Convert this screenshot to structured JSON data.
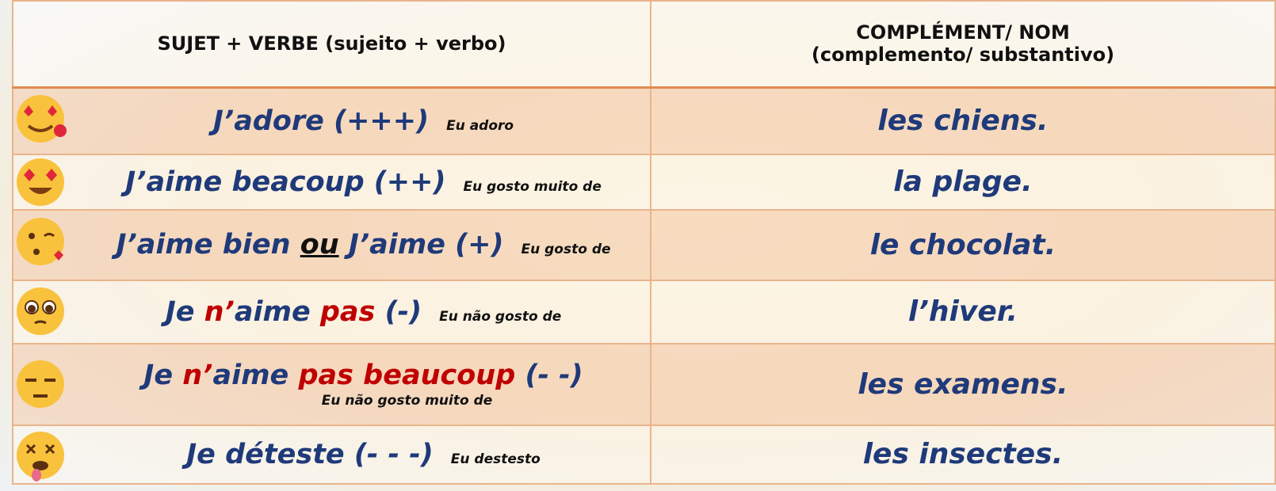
{
  "header": {
    "col1": "SUJET + VERBE (sujeito + verbo)",
    "col2": [
      "COMPLÉMENT/ NOM",
      "(complemento/ substantivo)"
    ]
  },
  "rows": [
    {
      "sujet": [
        {
          "text": "J’adore (+++)",
          "color": "#1f3a7a"
        }
      ],
      "note": "Eu adoro",
      "complement": "les chiens."
    },
    {
      "sujet": [
        {
          "text": "J’aime beacoup (++)",
          "color": "#1f3a7a"
        }
      ],
      "note": "Eu gosto muito de",
      "complement": "la plage."
    },
    {
      "sujet": [
        {
          "text": "J’aime bien ",
          "color": "#1f3a7a"
        },
        {
          "text": "ou",
          "color": "#111111",
          "underline": true
        },
        {
          "text": " J’aime (+)",
          "color": "#1f3a7a"
        }
      ],
      "note": "Eu gosto de",
      "complement": "le chocolat."
    },
    {
      "sujet": [
        {
          "text": "Je ",
          "color": "#1f3a7a"
        },
        {
          "text": "n’",
          "color": "#c00000"
        },
        {
          "text": "aime ",
          "color": "#1f3a7a"
        },
        {
          "text": "pas",
          "color": "#c00000"
        },
        {
          "text": " (-)",
          "color": "#1f3a7a"
        }
      ],
      "note": "Eu não gosto de",
      "complement": "l’hiver."
    },
    {
      "sujet": [
        {
          "text": "Je ",
          "color": "#1f3a7a"
        },
        {
          "text": "n’",
          "color": "#c00000"
        },
        {
          "text": "aime ",
          "color": "#1f3a7a"
        },
        {
          "text": "pas beaucoup",
          "color": "#c00000"
        },
        {
          "text": " (- -)",
          "color": "#1f3a7a"
        }
      ],
      "note": "Eu não gosto muito de",
      "complement": "les examens."
    },
    {
      "sujet": [
        {
          "text": "Je déteste (- - -)",
          "color": "#1f3a7a"
        }
      ],
      "note": "Eu destesto",
      "complement": "les insectes."
    }
  ]
}
